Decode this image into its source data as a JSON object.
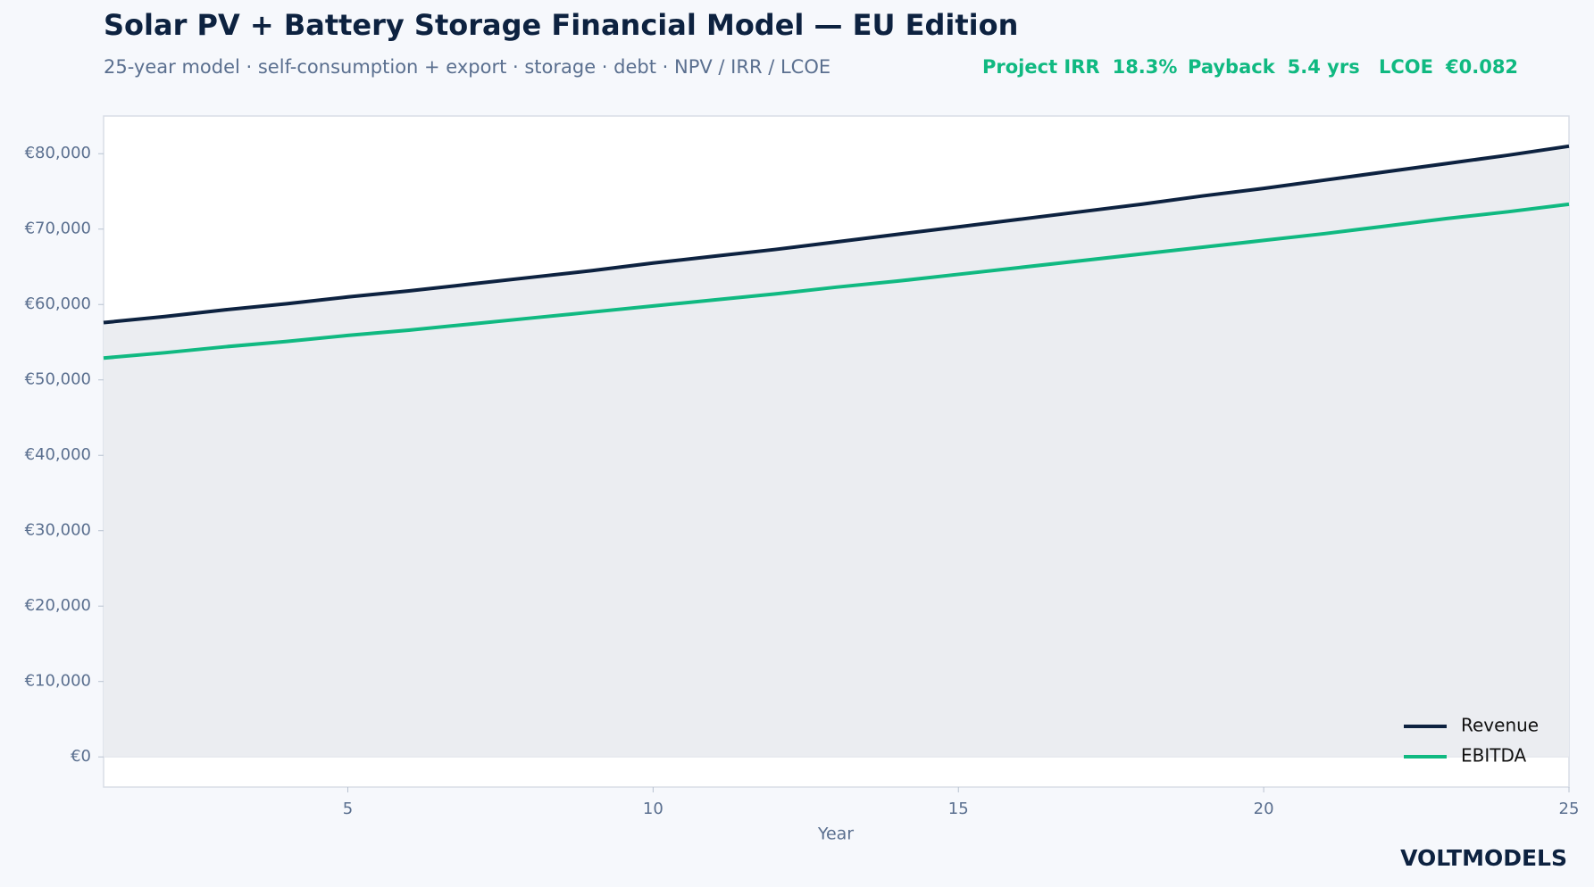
{
  "header": {
    "title": "Solar PV + Battery Storage Financial Model — EU Edition",
    "subtitle": "25-year model · self-consumption + export · storage · debt · NPV / IRR / LCOE",
    "kpis": [
      {
        "label": "Project IRR",
        "value": "18.3%"
      },
      {
        "label": "Payback",
        "value": "5.4 yrs"
      },
      {
        "label": "LCOE",
        "value": "€0.082"
      }
    ]
  },
  "chart_data": {
    "type": "line",
    "x_label": "Year",
    "x": [
      1,
      2,
      3,
      4,
      5,
      6,
      7,
      8,
      9,
      10,
      11,
      12,
      13,
      14,
      15,
      16,
      17,
      18,
      19,
      20,
      21,
      22,
      23,
      24,
      25
    ],
    "series": [
      {
        "name": "Revenue",
        "color": "#0d2240",
        "fill": "#ebedf1",
        "values": [
          57600,
          58400,
          59300,
          60100,
          61000,
          61800,
          62700,
          63600,
          64500,
          65500,
          66400,
          67300,
          68300,
          69300,
          70300,
          71300,
          72300,
          73300,
          74400,
          75400,
          76500,
          77600,
          78700,
          79800,
          81000
        ]
      },
      {
        "name": "EBITDA",
        "color": "#10b981",
        "values": [
          52900,
          53600,
          54400,
          55100,
          55900,
          56600,
          57400,
          58200,
          59000,
          59800,
          60600,
          61400,
          62300,
          63100,
          64000,
          64900,
          65800,
          66700,
          67600,
          68500,
          69400,
          70400,
          71400,
          72300,
          73300
        ]
      }
    ],
    "xlim": [
      1,
      25
    ],
    "xticks": [
      5,
      10,
      15,
      20,
      25
    ],
    "ylim": [
      -4000,
      85000
    ],
    "yticks": [
      {
        "value": 0,
        "label": "€0"
      },
      {
        "value": 10000,
        "label": "€10,000"
      },
      {
        "value": 20000,
        "label": "€20,000"
      },
      {
        "value": 30000,
        "label": "€30,000"
      },
      {
        "value": 40000,
        "label": "€40,000"
      },
      {
        "value": 50000,
        "label": "€50,000"
      },
      {
        "value": 60000,
        "label": "€60,000"
      },
      {
        "value": 70000,
        "label": "€70,000"
      },
      {
        "value": 80000,
        "label": "€80,000"
      }
    ],
    "grid": false,
    "legend": "lower right"
  },
  "footer": {
    "brand": "VOLTMODELS"
  }
}
